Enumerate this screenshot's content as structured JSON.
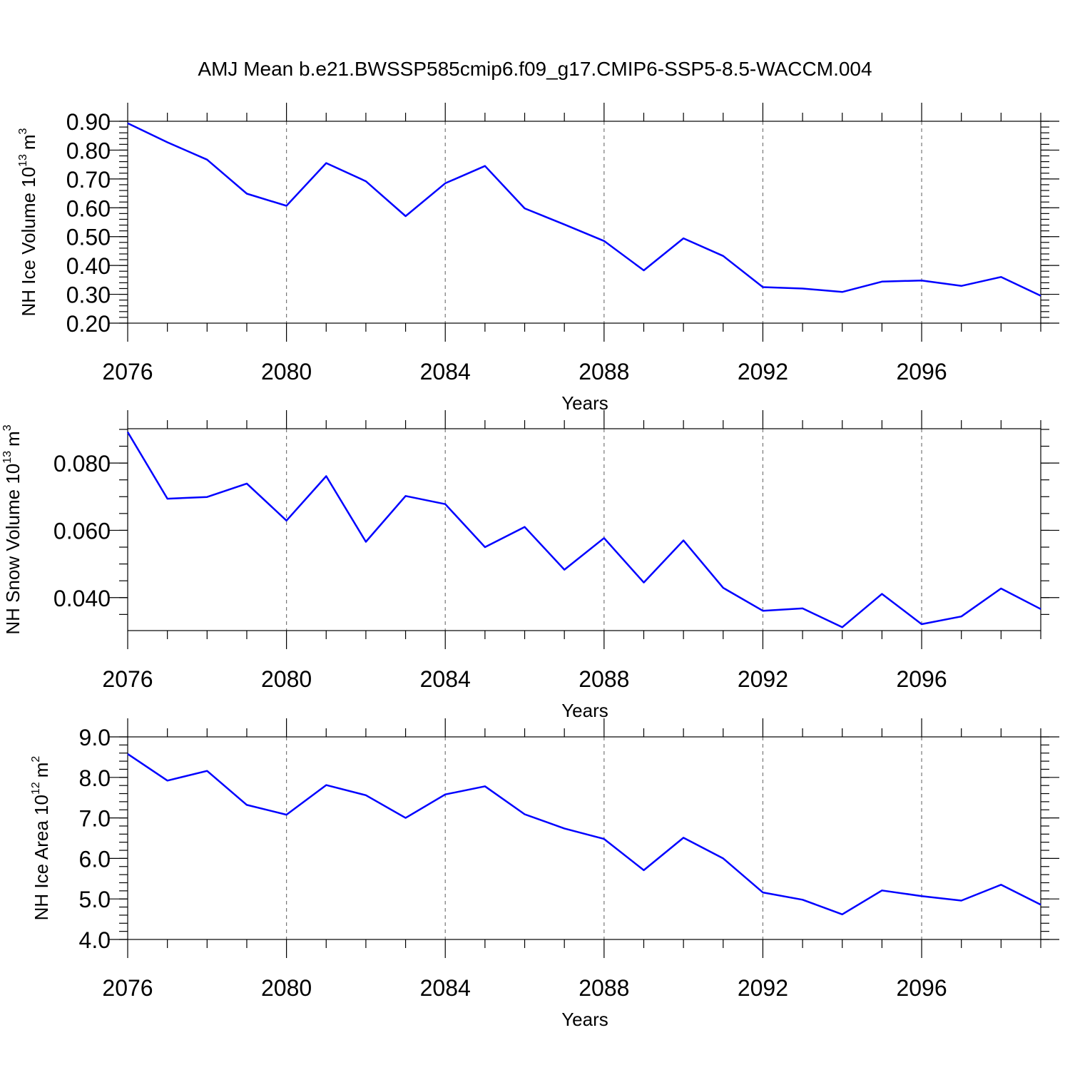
{
  "figure_title": "AMJ Mean b.e21.BWSSP585cmip6.f09_g17.CMIP6-SSP5-8.5-WACCM.004",
  "series_color": "#0000ff",
  "chart_data": [
    {
      "type": "line",
      "title": "",
      "xlabel": "Years",
      "ylabel": "NH Ice Volume",
      "ylabel_unit_base": "10",
      "ylabel_unit_exp": "13",
      "ylabel_unit_tail": "m",
      "ylabel_unit_tail_exp": "3",
      "xlim": [
        2076,
        2099
      ],
      "ylim": [
        0.2,
        0.9
      ],
      "x_ticks": [
        2076,
        2080,
        2084,
        2088,
        2092,
        2096
      ],
      "x_tick_labels": [
        "2076",
        "2080",
        "2084",
        "2088",
        "2092",
        "2096"
      ],
      "y_ticks": [
        0.2,
        0.3,
        0.4,
        0.5,
        0.6,
        0.7,
        0.8,
        0.9
      ],
      "y_tick_labels": [
        "0.20",
        "0.30",
        "0.40",
        "0.50",
        "0.60",
        "0.70",
        "0.80",
        "0.90"
      ],
      "y_minor_step": 0.02,
      "grid": "x-major-dashed",
      "x": [
        2076,
        2077,
        2078,
        2079,
        2080,
        2081,
        2082,
        2083,
        2084,
        2085,
        2086,
        2087,
        2088,
        2089,
        2090,
        2091,
        2092,
        2093,
        2094,
        2095,
        2096,
        2097,
        2098,
        2099
      ],
      "values": [
        0.893,
        0.827,
        0.767,
        0.649,
        0.607,
        0.755,
        0.692,
        0.571,
        0.685,
        0.745,
        0.598,
        0.542,
        0.485,
        0.383,
        0.494,
        0.433,
        0.325,
        0.32,
        0.308,
        0.344,
        0.348,
        0.329,
        0.36,
        0.295
      ]
    },
    {
      "type": "line",
      "title": "",
      "xlabel": "Years",
      "ylabel": "NH Snow Volume",
      "ylabel_unit_base": "10",
      "ylabel_unit_exp": "13",
      "ylabel_unit_tail": "m",
      "ylabel_unit_tail_exp": "3",
      "xlim": [
        2076,
        2099
      ],
      "ylim": [
        0.0302,
        0.0902
      ],
      "x_ticks": [
        2076,
        2080,
        2084,
        2088,
        2092,
        2096
      ],
      "x_tick_labels": [
        "2076",
        "2080",
        "2084",
        "2088",
        "2092",
        "2096"
      ],
      "y_ticks": [
        0.04,
        0.06,
        0.08
      ],
      "y_tick_labels": [
        "0.040",
        "0.060",
        "0.080"
      ],
      "y_minor_step": 0.005,
      "grid": "x-major-dashed",
      "x": [
        2076,
        2077,
        2078,
        2079,
        2080,
        2081,
        2082,
        2083,
        2084,
        2085,
        2086,
        2087,
        2088,
        2089,
        2090,
        2091,
        2092,
        2093,
        2094,
        2095,
        2096,
        2097,
        2098,
        2099
      ],
      "values": [
        0.0892,
        0.0694,
        0.0699,
        0.0739,
        0.0629,
        0.0761,
        0.0566,
        0.0702,
        0.0678,
        0.055,
        0.061,
        0.0483,
        0.0577,
        0.0445,
        0.057,
        0.0429,
        0.0361,
        0.0368,
        0.0312,
        0.0411,
        0.0321,
        0.0344,
        0.0427,
        0.0366
      ]
    },
    {
      "type": "line",
      "title": "",
      "xlabel": "Years",
      "ylabel": "NH Ice Area",
      "ylabel_unit_base": "10",
      "ylabel_unit_exp": "12",
      "ylabel_unit_tail": "m",
      "ylabel_unit_tail_exp": "2",
      "xlim": [
        2076,
        2099
      ],
      "ylim": [
        4.0,
        9.0
      ],
      "x_ticks": [
        2076,
        2080,
        2084,
        2088,
        2092,
        2096
      ],
      "x_tick_labels": [
        "2076",
        "2080",
        "2084",
        "2088",
        "2092",
        "2096"
      ],
      "y_ticks": [
        4.0,
        5.0,
        6.0,
        7.0,
        8.0,
        9.0
      ],
      "y_tick_labels": [
        "4.0",
        "5.0",
        "6.0",
        "7.0",
        "8.0",
        "9.0"
      ],
      "y_minor_step": 0.2,
      "grid": "x-major-dashed",
      "x": [
        2076,
        2077,
        2078,
        2079,
        2080,
        2081,
        2082,
        2083,
        2084,
        2085,
        2086,
        2087,
        2088,
        2089,
        2090,
        2091,
        2092,
        2093,
        2094,
        2095,
        2096,
        2097,
        2098,
        2099
      ],
      "values": [
        8.58,
        7.92,
        8.16,
        7.32,
        7.08,
        7.81,
        7.56,
        7.0,
        7.58,
        7.78,
        7.09,
        6.74,
        6.48,
        5.71,
        6.51,
        6.0,
        5.16,
        4.98,
        4.62,
        5.21,
        5.07,
        4.96,
        5.35,
        4.86
      ]
    }
  ]
}
